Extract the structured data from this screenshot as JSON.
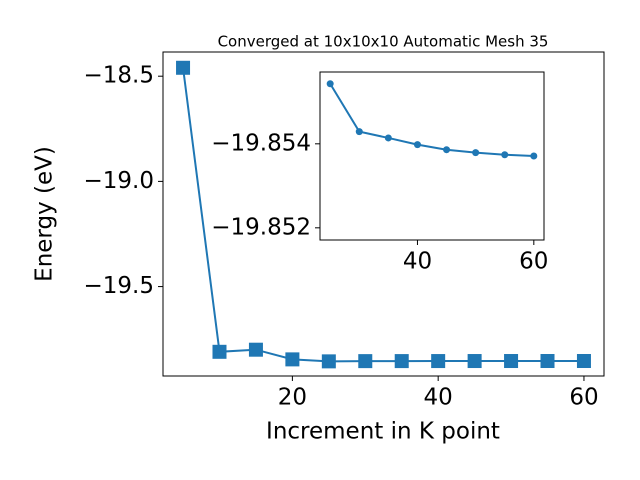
{
  "chart_data": [
    {
      "type": "line",
      "title": "Converged at 10x10x10 Automatic Mesh 35",
      "xlabel": "Increment in K point",
      "ylabel": "Energy (eV)",
      "x": [
        5,
        10,
        15,
        20,
        25,
        30,
        35,
        40,
        45,
        50,
        55,
        60
      ],
      "series": [
        {
          "color": "#1f77b4",
          "marker": "square",
          "values": [
            -18.46,
            -19.81,
            -19.8,
            -19.846,
            -19.85543,
            -19.85429,
            -19.85414,
            -19.85398,
            -19.85386,
            -19.85379,
            -19.85374,
            -19.85371
          ]
        }
      ],
      "xlim": [
        2.25,
        62.75
      ],
      "ylim": [
        -19.925,
        -18.385
      ],
      "xticks": [
        20,
        40,
        60
      ],
      "yticks": [
        {
          "value": -18.5,
          "label": "−18.5"
        },
        {
          "value": -19.0,
          "label": "−19.0"
        },
        {
          "value": -19.5,
          "label": "−19.5"
        }
      ]
    },
    {
      "type": "line",
      "x": [
        25,
        30,
        35,
        40,
        45,
        50,
        55,
        60
      ],
      "series": [
        {
          "color": "#1f77b4",
          "marker": "circle",
          "values": [
            -19.85543,
            -19.85429,
            -19.85414,
            -19.85398,
            -19.85386,
            -19.85379,
            -19.85374,
            -19.85371
          ]
        }
      ],
      "xlim": [
        23.25,
        61.75
      ],
      "ylim": [
        -19.85171,
        -19.85571
      ],
      "xticks": [
        40,
        60
      ],
      "yticks": [
        {
          "value": -19.854,
          "label": "−19.854"
        },
        {
          "value": -19.852,
          "label": "−19.852"
        }
      ]
    }
  ]
}
